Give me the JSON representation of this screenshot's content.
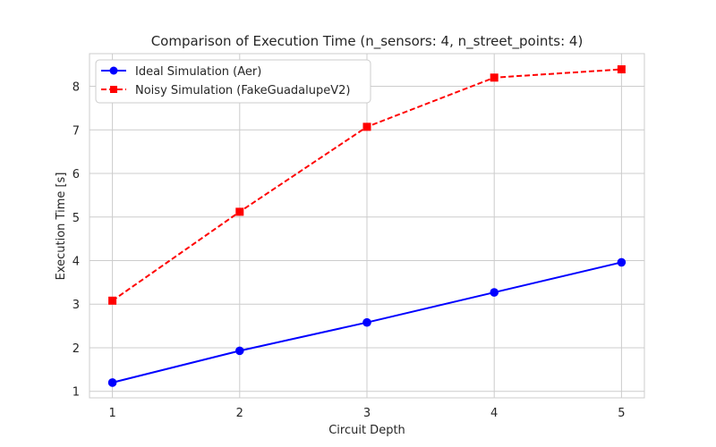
{
  "chart_data": {
    "type": "line",
    "title": "Comparison of Execution Time (n_sensors: 4, n_street_points: 4)",
    "xlabel": "Circuit Depth",
    "ylabel": "Execution Time [s]",
    "x": [
      1,
      2,
      3,
      4,
      5
    ],
    "xticks": [
      "1",
      "2",
      "3",
      "4",
      "5"
    ],
    "yticks": [
      "1",
      "2",
      "3",
      "4",
      "5",
      "6",
      "7",
      "8"
    ],
    "xlim": [
      0.82,
      5.18
    ],
    "ylim": [
      0.85,
      8.75
    ],
    "grid": true,
    "legend_position": "top-left",
    "series": [
      {
        "name": "Ideal Simulation (Aer)",
        "values": [
          1.2,
          1.93,
          2.58,
          3.27,
          3.96
        ],
        "color": "#0000ff",
        "marker": "circle",
        "line_style": "solid"
      },
      {
        "name": "Noisy Simulation (FakeGuadalupeV2)",
        "values": [
          3.08,
          5.12,
          7.07,
          8.2,
          8.39
        ],
        "color": "#ff0000",
        "marker": "square",
        "line_style": "dashed"
      }
    ]
  }
}
